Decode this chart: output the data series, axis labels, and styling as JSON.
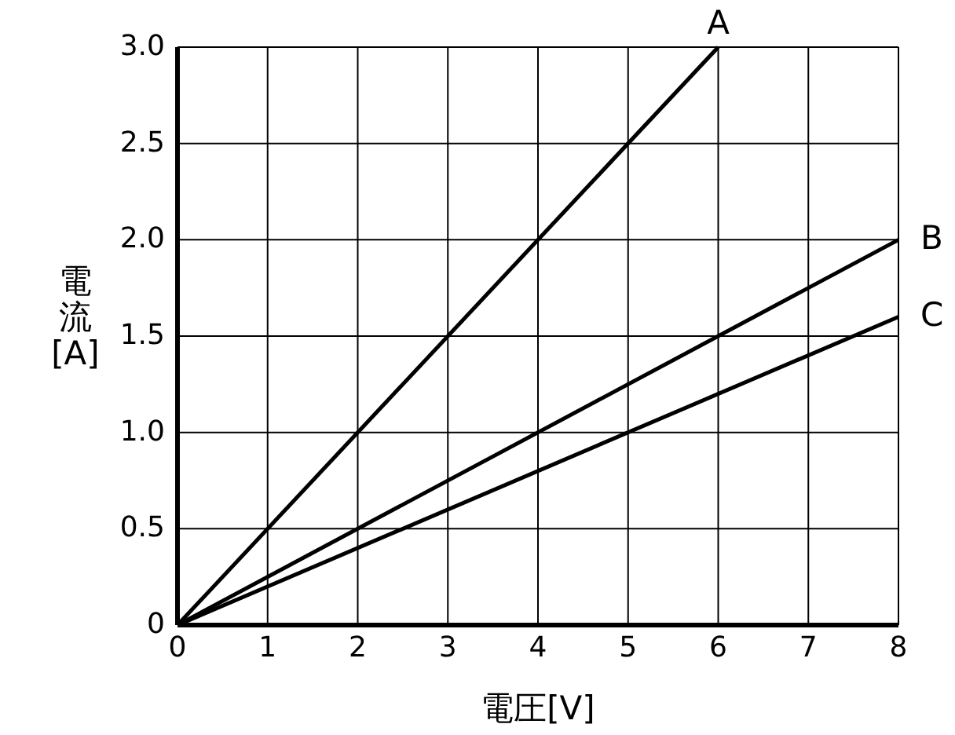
{
  "chart_data": {
    "type": "line",
    "xlabel": "電圧[V]",
    "ylabel": "電流[A]",
    "xlim": [
      0,
      8
    ],
    "ylim": [
      0,
      3
    ],
    "xticks": [
      0,
      1,
      2,
      3,
      4,
      5,
      6,
      7,
      8
    ],
    "yticks": [
      0,
      {
        "value": 0.5,
        "label": "0.5"
      },
      {
        "value": 1,
        "label": "1.0"
      },
      {
        "value": 1.5,
        "label": "1.5"
      },
      {
        "value": 2,
        "label": "2.0"
      },
      {
        "value": 2.5,
        "label": "2.5"
      },
      {
        "value": 3,
        "label": "3.0"
      }
    ],
    "grid": true,
    "marker": "none",
    "line_style": "solid",
    "series": [
      {
        "name": "A",
        "color": "#000000",
        "x": [
          0,
          6
        ],
        "values": [
          0,
          3
        ]
      },
      {
        "name": "B",
        "color": "#000000",
        "x": [
          0,
          8
        ],
        "values": [
          0,
          2
        ]
      },
      {
        "name": "C",
        "color": "#000000",
        "x": [
          0,
          8
        ],
        "values": [
          0,
          1.6
        ]
      }
    ]
  }
}
